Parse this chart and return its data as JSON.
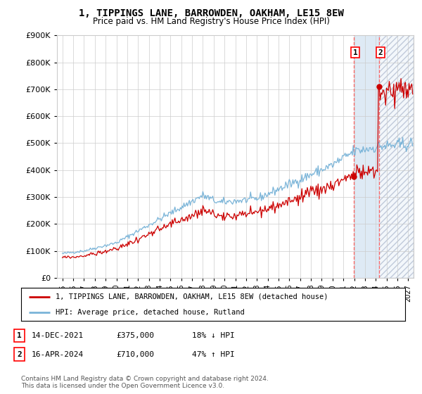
{
  "title": "1, TIPPINGS LANE, BARROWDEN, OAKHAM, LE15 8EW",
  "subtitle": "Price paid vs. HM Land Registry's House Price Index (HPI)",
  "legend_line1": "1, TIPPINGS LANE, BARROWDEN, OAKHAM, LE15 8EW (detached house)",
  "legend_line2": "HPI: Average price, detached house, Rutland",
  "transaction1_date": "14-DEC-2021",
  "transaction1_price": "£375,000",
  "transaction1_hpi": "18% ↓ HPI",
  "transaction1_date_val": 2021.96,
  "transaction1_price_val": 375000,
  "transaction2_date": "16-APR-2024",
  "transaction2_price": "£710,000",
  "transaction2_hpi": "47% ↑ HPI",
  "transaction2_date_val": 2024.29,
  "transaction2_price_val": 710000,
  "copyright": "Contains HM Land Registry data © Crown copyright and database right 2024.\nThis data is licensed under the Open Government Licence v3.0.",
  "ylim_max": 900000,
  "xlim_start": 1994.5,
  "xlim_end": 2027.5,
  "hpi_color": "#7ab4d8",
  "property_color": "#cc0000",
  "background_color": "#ffffff",
  "grid_color": "#cccccc",
  "shade_color": "#deeaf5",
  "hatch_color": "#b0b8cc"
}
